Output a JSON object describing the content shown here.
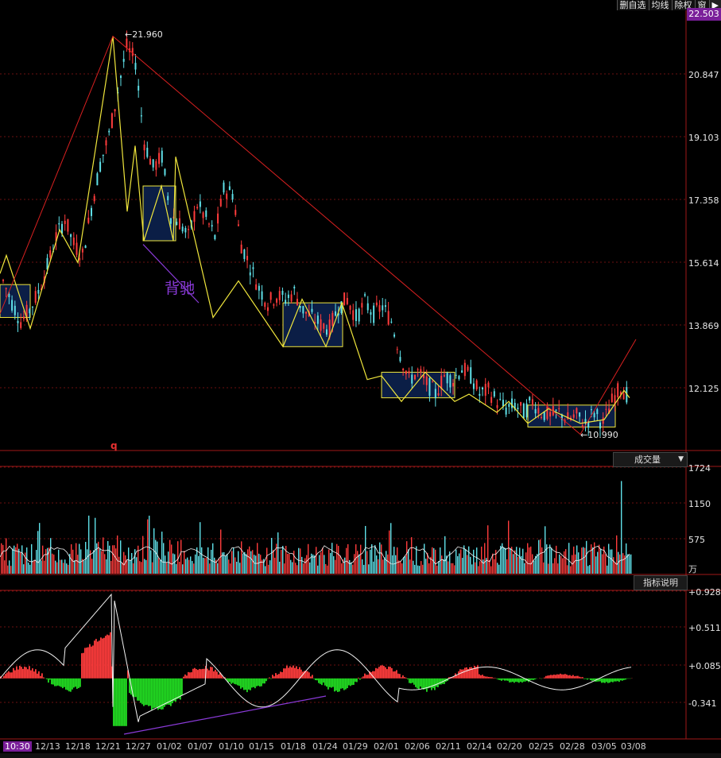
{
  "toolbar": {
    "watchlist": "删自选",
    "ma": "均线",
    "exright": "除权",
    "window": "窗",
    "nav": "▶"
  },
  "price_axis": {
    "current_top": "22.503",
    "ticks": [
      "20.847",
      "19.103",
      "17.358",
      "15.614",
      "13.869",
      "12.125"
    ]
  },
  "volume_panel": {
    "selector": "成交量",
    "ticks": [
      "1724",
      "1150",
      "575"
    ],
    "unit": "万"
  },
  "indicator_panel": {
    "button": "指标说明",
    "ticks": [
      "+0.928",
      "+0.511",
      "+0.085",
      "-0.341"
    ]
  },
  "annotations": {
    "high_label": "21.960",
    "low_label": "10.990",
    "divergence": "背驰",
    "marker": "q"
  },
  "x_axis": {
    "labels": [
      "10:30",
      "12/13",
      "12/18",
      "12/21",
      "12/27",
      "01/02",
      "01/07",
      "01/10",
      "01/15",
      "01/18",
      "01/24",
      "01/29",
      "02/01",
      "02/06",
      "02/11",
      "02/14",
      "02/20",
      "02/25",
      "02/28",
      "03/05",
      "03/08"
    ]
  },
  "colors": {
    "up": "#ff3c3c",
    "down": "#5fe0e8",
    "stroke": "#f0e63c",
    "box_fill": "#0b1e46",
    "accent": "#7a1f9a",
    "green": "#22dd22"
  },
  "chart_data": {
    "type": "candlestick",
    "price_range": [
      10.6,
      22.5
    ],
    "high": 21.96,
    "low": 10.99,
    "close_path": [
      15.2,
      14.6,
      14.1,
      14.4,
      14.9,
      15.6,
      16.4,
      16.9,
      16.2,
      15.9,
      17.2,
      18.4,
      19.2,
      20.4,
      21.6,
      21.2,
      19.0,
      18.3,
      18.6,
      17.0,
      16.8,
      16.4,
      17.3,
      16.9,
      16.4,
      17.7,
      17.6,
      16.2,
      15.6,
      15.0,
      14.6,
      14.8,
      14.7,
      14.9,
      14.4,
      14.2,
      14.0,
      13.9,
      14.5,
      14.7,
      14.2,
      14.6,
      14.3,
      14.5,
      14.1,
      13.2,
      12.5,
      12.7,
      12.4,
      12.1,
      12.6,
      12.5,
      12.8,
      12.6,
      12.1,
      12.2,
      11.9,
      11.7,
      11.8,
      11.6,
      11.9,
      11.6,
      11.5,
      11.6,
      11.4,
      11.5,
      11.3,
      11.6,
      11.3,
      11.9,
      12.3,
      12.0
    ],
    "consolidation_zones": [
      {
        "high": 15.1,
        "low": 14.2
      },
      {
        "high": 17.8,
        "low": 16.3
      },
      {
        "high": 14.6,
        "low": 13.4
      },
      {
        "high": 12.7,
        "low": 12.0
      },
      {
        "high": 11.8,
        "low": 11.2
      }
    ],
    "volume_range": [
      0,
      1724
    ],
    "indicator_range": [
      -0.55,
      1.0
    ]
  }
}
